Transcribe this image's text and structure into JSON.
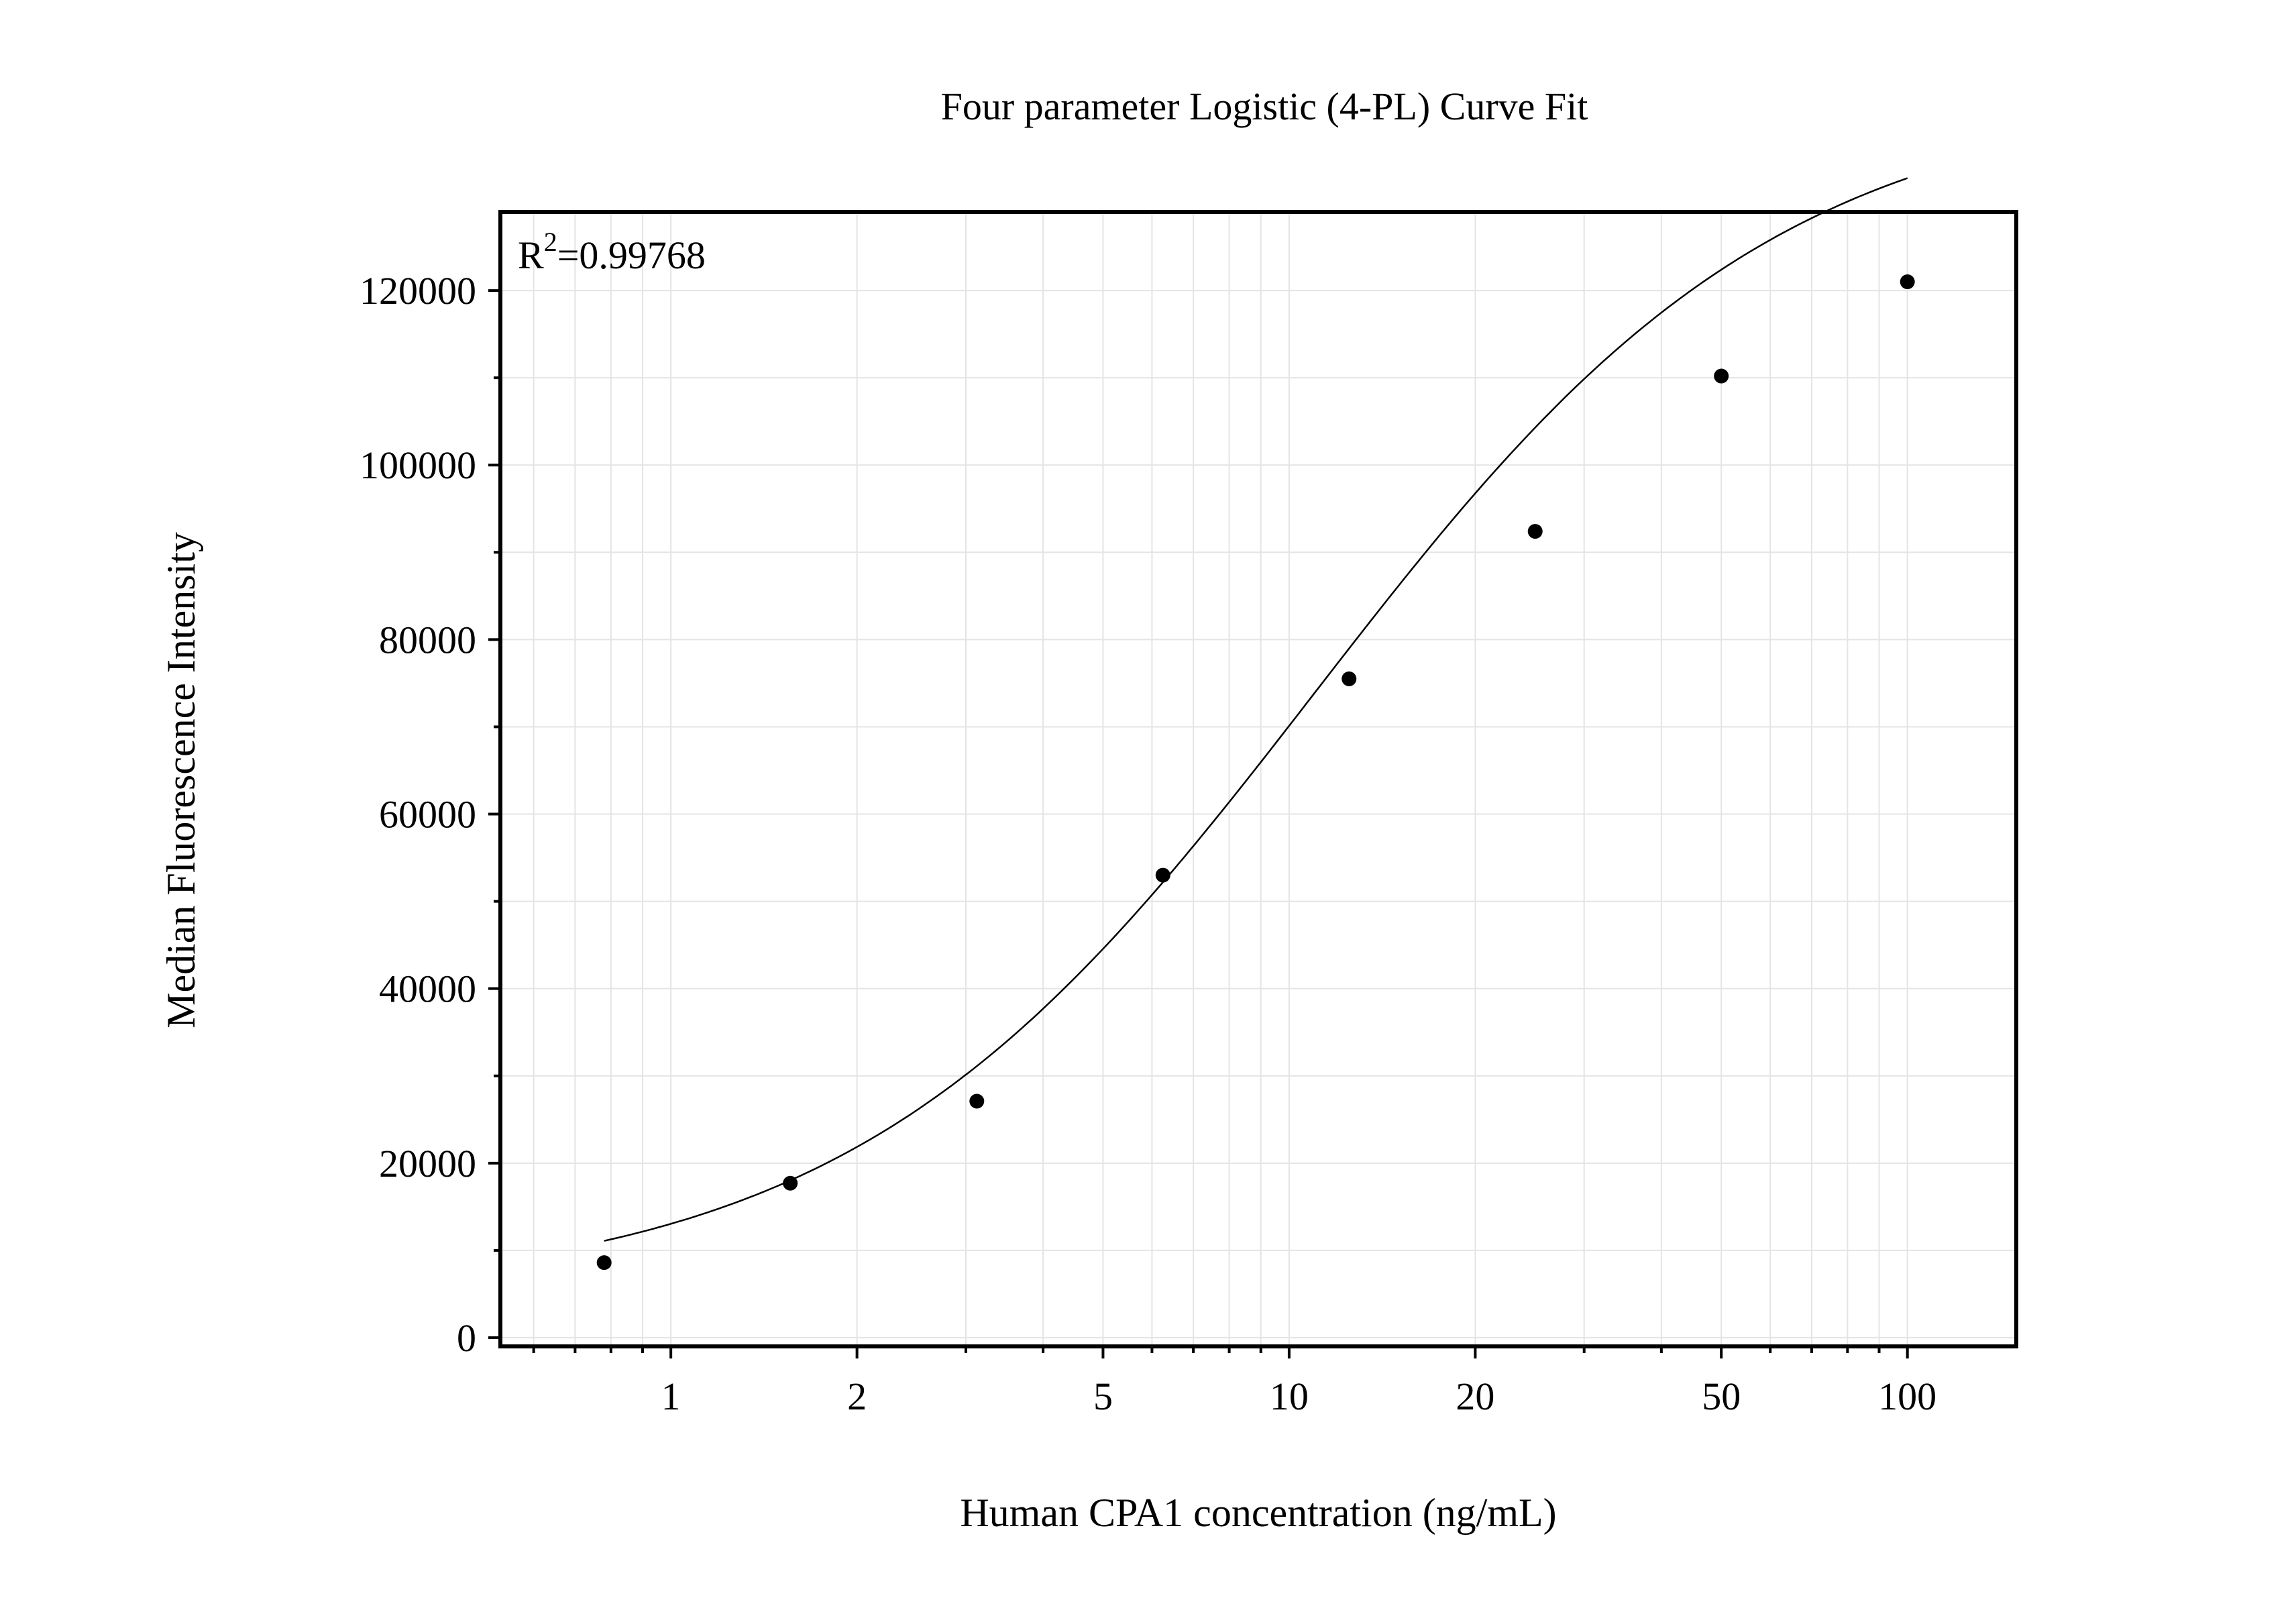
{
  "chart_data": {
    "type": "scatter",
    "title": "Four parameter Logistic (4-PL) Curve Fit",
    "xlabel": "Human CPA1 concentration (ng/mL)",
    "ylabel": "Median Fluorescence Intensity",
    "x_scale": "log",
    "xlim": [
      0.53,
      150
    ],
    "ylim": [
      -1000,
      129000
    ],
    "x_ticks": [
      1,
      2,
      5,
      10,
      20,
      50,
      100
    ],
    "x_tick_labels": [
      "1",
      "2",
      "5",
      "10",
      "20",
      "50",
      "100"
    ],
    "y_ticks": [
      0,
      20000,
      40000,
      60000,
      80000,
      100000,
      120000
    ],
    "y_tick_labels": [
      "0",
      "20000",
      "40000",
      "60000",
      "80000",
      "100000",
      "120000"
    ],
    "grid": true,
    "annotation": {
      "prefix": "R",
      "superscript": "2",
      "value": "=0.99768"
    },
    "series": [
      {
        "kind": "points",
        "x": [
          0.78,
          1.56,
          3.125,
          6.25,
          12.5,
          25,
          50,
          100
        ],
        "y": [
          8600,
          17700,
          27100,
          53000,
          75500,
          92400,
          110200,
          121000
        ]
      },
      {
        "kind": "curve",
        "fit": "4PL",
        "params": {
          "A": 4800,
          "B": 1.15,
          "C": 11,
          "D": 143000
        },
        "x_range": [
          0.78,
          100
        ]
      }
    ]
  }
}
